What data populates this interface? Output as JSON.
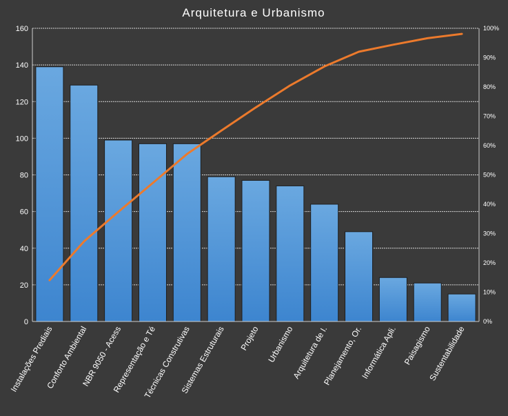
{
  "chart_data": {
    "type": "bar",
    "title": "Arquitetura  e  Urbanismo",
    "categories": [
      "Instalações Prediais",
      "Conforto Ambiental",
      "NBR 9050 - Acess",
      "Representação e Té",
      "Técnicas Construtivas",
      "Sistemas Estruturais",
      "Projeto",
      "Urbanismo",
      "Arquitetura de I.",
      "Planejamento, Or.",
      "Informática Apli.",
      "Paisagismo",
      "Sustentabilidade"
    ],
    "values": [
      139,
      129,
      99,
      97,
      97,
      79,
      77,
      74,
      64,
      49,
      24,
      21,
      15
    ],
    "cumulative_percent": [
      14.1,
      27.3,
      37.4,
      47.2,
      57.1,
      65.1,
      73.0,
      80.5,
      87.0,
      92.0,
      94.4,
      96.6,
      98.1
    ],
    "ylim": [
      0,
      160
    ],
    "yticks": [
      "0",
      "20",
      "40",
      "60",
      "80",
      "100",
      "120",
      "140",
      "160"
    ],
    "y2lim": [
      0,
      100
    ],
    "y2ticks": [
      "0%",
      "10%",
      "20%",
      "30%",
      "40%",
      "50%",
      "60%",
      "70%",
      "80%",
      "90%",
      "100%"
    ],
    "grid": true,
    "colors": {
      "bar": "#5b9bd5",
      "line": "#ec7a2c",
      "background": "#3a3a3a"
    }
  }
}
